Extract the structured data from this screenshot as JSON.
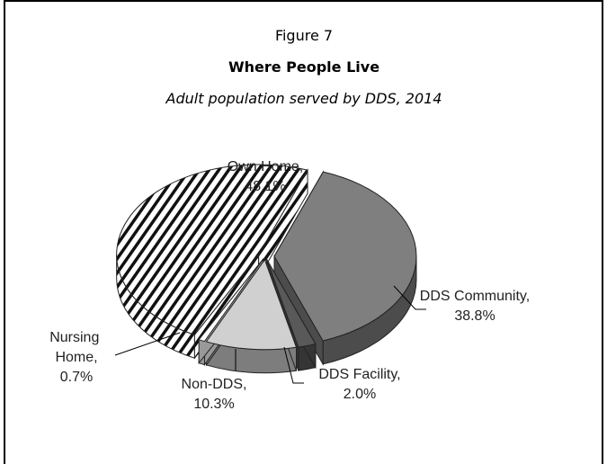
{
  "chart_data": {
    "type": "pie3d",
    "title": "Figure 7",
    "subtitle": "Where People Live",
    "caption": "Adult population served by DDS, 2014",
    "categories": [
      "Own Home,",
      "DDS Community,",
      "DDS Facility,",
      "Non-DDS,",
      "Nursing Home,"
    ],
    "values": [
      48.1,
      38.8,
      2.0,
      10.3,
      0.7
    ],
    "value_labels": [
      "48.1%",
      "38.8%",
      "2.0%",
      "10.3%",
      "0.7%"
    ],
    "colors": [
      "#000000",
      "#7f7f7f",
      "#595959",
      "#d0d0d0",
      "#ffffff"
    ],
    "hatched": [
      true,
      false,
      false,
      false,
      false
    ]
  }
}
